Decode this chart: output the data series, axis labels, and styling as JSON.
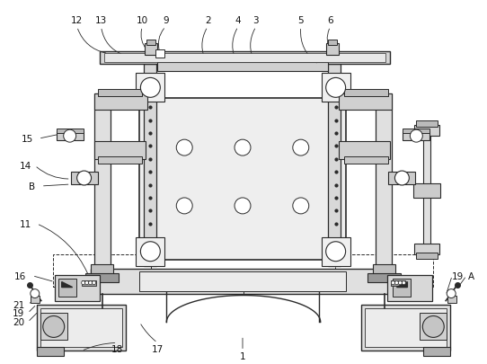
{
  "bg_color": "#ffffff",
  "line_color": "#2a2a2a",
  "label_color": "#111111",
  "fig_width": 5.42,
  "fig_height": 4.06,
  "dpi": 100
}
